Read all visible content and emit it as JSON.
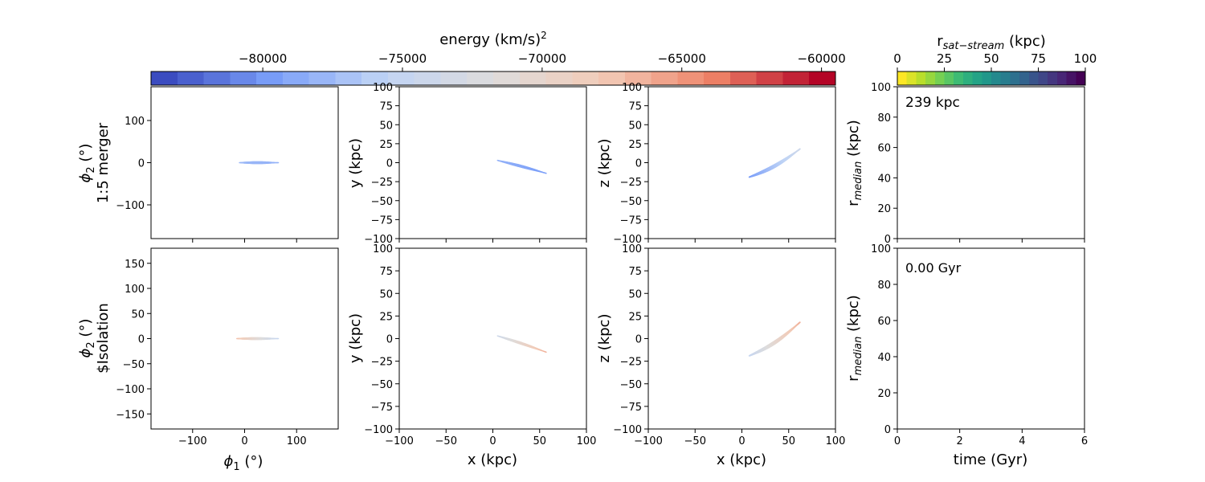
{
  "colorbar_energy": {
    "label_main": "energy (km/s)",
    "label_sup": "2",
    "ticks": [
      "−80000",
      "−75000",
      "−70000",
      "−65000",
      "−60000"
    ],
    "tick_values": [
      -80000,
      -75000,
      -70000,
      -65000,
      -60000
    ],
    "range": [
      -84000,
      -59500
    ],
    "colormap": "coolwarm",
    "stops": [
      "#3b4cc0",
      "#7b9ff9",
      "#c0d4f5",
      "#dddcdc",
      "#f2cbb7",
      "#ee8468",
      "#b40426"
    ]
  },
  "colorbar_rsat": {
    "label_main": "r",
    "label_sub": "sat−stream",
    "label_tail": " (kpc)",
    "ticks": [
      "0",
      "25",
      "50",
      "75",
      "100"
    ],
    "tick_values": [
      0,
      25,
      50,
      75,
      100
    ],
    "range": [
      0,
      100
    ],
    "colormap": "viridis_r",
    "stops": [
      "#fde725",
      "#b5de2b",
      "#6ece58",
      "#35b779",
      "#1f9e89",
      "#26828e",
      "#31688e",
      "#3e4989",
      "#482878",
      "#440154"
    ]
  },
  "rows": [
    {
      "label_phi": "ϕ",
      "label_phi_sub": "2",
      "label_phi_tail": " (°)",
      "label_name": "1:5 merger",
      "phi_ticks": [
        "100",
        "0",
        "−100"
      ],
      "phi_tick_values": [
        100,
        0,
        -100
      ],
      "annotation": "239 kpc"
    },
    {
      "label_phi": "ϕ",
      "label_phi_sub": "2",
      "label_phi_tail": " (°)",
      "label_name": "$Isolation",
      "phi_ticks": [
        "150",
        "100",
        "50",
        "0",
        "−50",
        "−100",
        "−150"
      ],
      "phi_tick_values": [
        150,
        100,
        50,
        0,
        -50,
        -100,
        -150
      ],
      "annotation": "0.00 Gyr"
    }
  ],
  "axes": {
    "y_label": "y (kpc)",
    "z_label": "z (kpc)",
    "x_label": "x (kpc)",
    "phi1_label": "ϕ",
    "phi1_sub": "1",
    "phi1_tail": " (°)",
    "xyz_ticks": [
      "100",
      "75",
      "50",
      "25",
      "0",
      "−25",
      "−50",
      "−75",
      "−100"
    ],
    "xyz_tick_values": [
      100,
      75,
      50,
      25,
      0,
      -25,
      -50,
      -75,
      -100
    ],
    "x_ticks": [
      "−100",
      "−50",
      "0",
      "50",
      "100"
    ],
    "x_tick_values": [
      -100,
      -50,
      0,
      50,
      100
    ],
    "phi1_ticks": [
      "−100",
      "0",
      "100"
    ],
    "phi1_tick_values": [
      -100,
      0,
      100
    ],
    "rmed_label_main": "r",
    "rmed_label_sub": "median",
    "rmed_label_tail": " (kpc)",
    "rmed_ticks": [
      "100",
      "80",
      "60",
      "40",
      "20",
      "0"
    ],
    "rmed_tick_values": [
      100,
      80,
      60,
      40,
      20,
      0
    ],
    "time_ticks": [
      "0",
      "2",
      "4",
      "6"
    ],
    "time_tick_values": [
      0,
      2,
      4,
      6
    ],
    "time_label": "time (Gyr)"
  },
  "chart_data": [
    {
      "type": "scatter",
      "panel": "top-phi",
      "xlabel": "",
      "ylabel": "ϕ2 (°) 1:5 merger",
      "xlim": [
        -180,
        180
      ],
      "ylim": [
        -180,
        180
      ],
      "stream": {
        "x0": -10,
        "x1": 65,
        "y0": 0,
        "y1": 0,
        "thickness": 3,
        "energy": [
          -78000,
          -78500
        ]
      }
    },
    {
      "type": "scatter",
      "panel": "top-xy",
      "xlabel": "",
      "ylabel": "y (kpc)",
      "xlim": [
        -100,
        100
      ],
      "ylim": [
        -100,
        100
      ],
      "stream": {
        "x0": 5,
        "x1": 57,
        "y0": 3,
        "y1": -14,
        "thickness": 3,
        "energy": [
          -78500,
          -80000
        ]
      }
    },
    {
      "type": "scatter",
      "panel": "top-xz",
      "xlabel": "",
      "ylabel": "z (kpc)",
      "xlim": [
        -100,
        100
      ],
      "ylim": [
        -100,
        100
      ],
      "stream": {
        "x0": 8,
        "x1": 62,
        "y0": -19,
        "y1": 18,
        "thickness": 4,
        "energy": [
          -80000,
          -74000
        ]
      }
    },
    {
      "type": "scatter",
      "panel": "bottom-phi",
      "xlabel": "ϕ1 (°)",
      "ylabel": "ϕ2 (°) $Isolation",
      "xlim": [
        -180,
        180
      ],
      "ylim": [
        -180,
        180
      ],
      "stream": {
        "x0": -15,
        "x1": 65,
        "y0": 0,
        "y1": 0,
        "thickness": 3,
        "energy": [
          -67000,
          -75000
        ]
      }
    },
    {
      "type": "scatter",
      "panel": "bottom-xy",
      "xlabel": "x (kpc)",
      "ylabel": "y (kpc)",
      "xlim": [
        -100,
        100
      ],
      "ylim": [
        -100,
        100
      ],
      "stream": {
        "x0": 5,
        "x1": 57,
        "y0": 3,
        "y1": -15,
        "thickness": 3,
        "energy": [
          -74000,
          -66000
        ]
      }
    },
    {
      "type": "scatter",
      "panel": "bottom-xz",
      "xlabel": "x (kpc)",
      "ylabel": "z (kpc)",
      "xlim": [
        -100,
        100
      ],
      "ylim": [
        -100,
        100
      ],
      "stream": {
        "x0": 8,
        "x1": 62,
        "y0": -19,
        "y1": 18,
        "thickness": 4,
        "energy": [
          -75000,
          -66000
        ]
      }
    },
    {
      "type": "line",
      "panel": "top-rmedian",
      "xlabel": "",
      "ylabel": "r_median (kpc)",
      "xlim": [
        0,
        6
      ],
      "ylim": [
        0,
        100
      ],
      "series": []
    },
    {
      "type": "line",
      "panel": "bottom-rmedian",
      "xlabel": "time (Gyr)",
      "ylabel": "r_median (kpc)",
      "xlim": [
        0,
        6
      ],
      "ylim": [
        0,
        100
      ],
      "series": []
    }
  ]
}
